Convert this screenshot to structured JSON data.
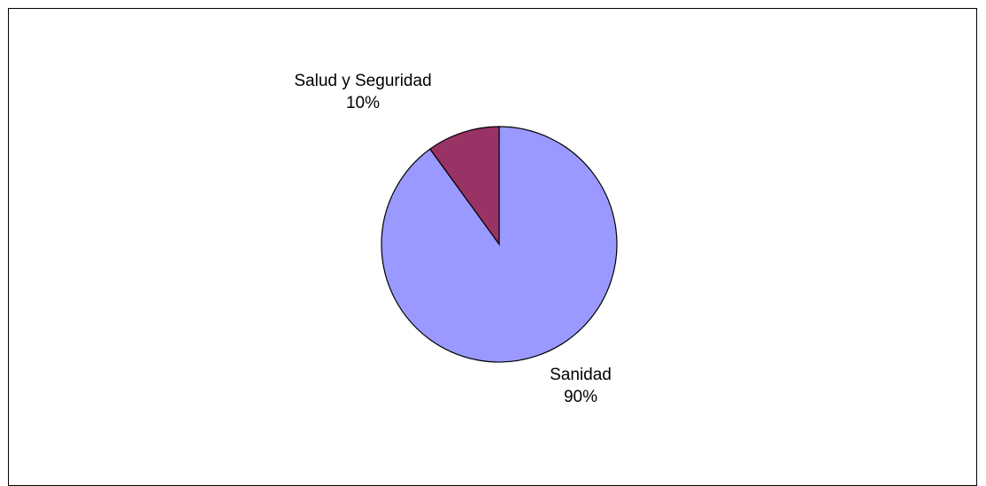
{
  "chart_data": {
    "type": "pie",
    "title": "",
    "categories": [
      "Salud y Seguridad",
      "Sanidad"
    ],
    "values": [
      10,
      90
    ],
    "percent_labels": [
      "10%",
      "90%"
    ],
    "colors": [
      "#993366",
      "#9999ff"
    ],
    "start_angle": "top",
    "direction": "clockwise",
    "legend": "none"
  }
}
